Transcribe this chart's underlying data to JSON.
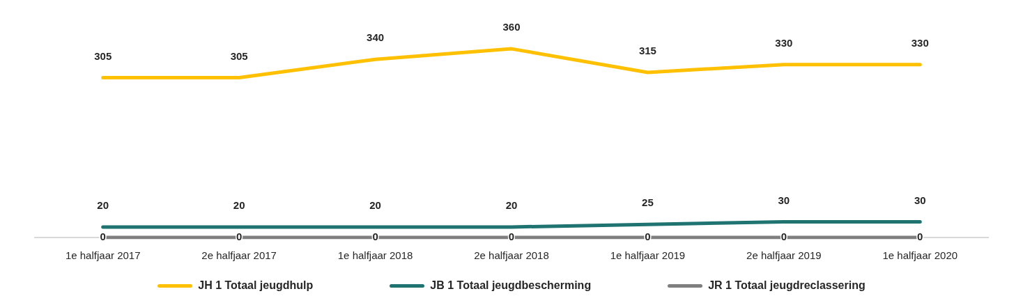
{
  "chart_data": {
    "type": "line",
    "categories": [
      "1e halfjaar 2017",
      "2e halfjaar 2017",
      "1e halfjaar 2018",
      "2e halfjaar 2018",
      "1e halfjaar 2019",
      "2e halfjaar 2019",
      "1e halfjaar 2020"
    ],
    "series": [
      {
        "name": "JH 1 Totaal jeugdhulp",
        "color": "#ffc000",
        "values": [
          305,
          305,
          340,
          360,
          315,
          330,
          330
        ]
      },
      {
        "name": "JB 1 Totaal jeugdbescherming",
        "color": "#1f7370",
        "values": [
          20,
          20,
          20,
          20,
          25,
          30,
          30
        ]
      },
      {
        "name": "JR 1 Totaal jeugdreclassering",
        "color": "#7f7f7f",
        "values": [
          0,
          0,
          0,
          0,
          0,
          0,
          0
        ]
      }
    ],
    "data_labels": true,
    "legend": "bottom",
    "grid": false,
    "marker": "none",
    "line_style": "solid"
  }
}
